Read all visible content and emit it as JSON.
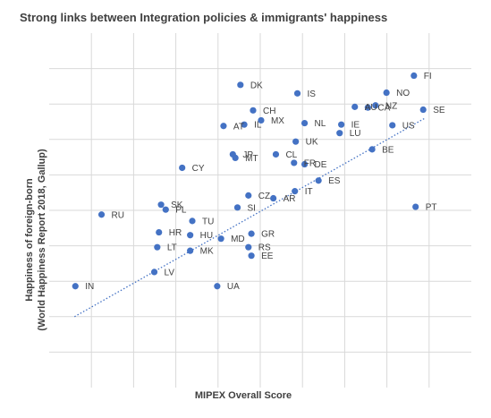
{
  "chart_data": {
    "type": "scatter",
    "title": "Strong links between Integration policies & immigrants' happiness",
    "xlabel": "MIPEX Overall Score",
    "ylabel_line1": "Happiness of foreign-born",
    "ylabel_line2": "(World Happiness Report 2018, Gallup)",
    "xlim": [
      0,
      100
    ],
    "ylim": [
      3,
      8
    ],
    "x_gridlines": [
      10,
      20,
      30,
      40,
      50,
      60,
      70,
      80,
      90
    ],
    "y_gridlines": [
      3.5,
      4,
      4.5,
      5,
      5.5,
      6,
      6.5,
      7,
      7.5
    ],
    "grid": true,
    "trendline": {
      "style": "dotted",
      "color": "#4472c4",
      "x": [
        6,
        89
      ],
      "y": [
        4,
        6.8
      ]
    },
    "point_color": "#4472c4",
    "points": [
      {
        "label": "FI",
        "x": 86.4,
        "y": 7.4
      },
      {
        "label": "DK",
        "x": 45.3,
        "y": 7.27
      },
      {
        "label": "IS",
        "x": 58.8,
        "y": 7.15
      },
      {
        "label": "NO",
        "x": 79.9,
        "y": 7.16
      },
      {
        "label": "NZ",
        "x": 77.3,
        "y": 6.98
      },
      {
        "label": "SE",
        "x": 88.6,
        "y": 6.92
      },
      {
        "label": "CA",
        "x": 75.5,
        "y": 6.95
      },
      {
        "label": "AU",
        "x": 72.4,
        "y": 6.96
      },
      {
        "label": "CH",
        "x": 48.3,
        "y": 6.91
      },
      {
        "label": "MX",
        "x": 50.2,
        "y": 6.77
      },
      {
        "label": "NL",
        "x": 60.5,
        "y": 6.73
      },
      {
        "label": "IE",
        "x": 69.2,
        "y": 6.71
      },
      {
        "label": "IL",
        "x": 46.2,
        "y": 6.71
      },
      {
        "label": "AT",
        "x": 41.3,
        "y": 6.69
      },
      {
        "label": "LU",
        "x": 68.8,
        "y": 6.59
      },
      {
        "label": "US",
        "x": 81.3,
        "y": 6.7
      },
      {
        "label": "UK",
        "x": 58.4,
        "y": 6.47
      },
      {
        "label": "BE",
        "x": 76.5,
        "y": 6.36
      },
      {
        "label": "JP",
        "x": 43.5,
        "y": 6.29
      },
      {
        "label": "CL",
        "x": 53.7,
        "y": 6.29
      },
      {
        "label": "MT",
        "x": 44.1,
        "y": 6.24
      },
      {
        "label": "FR",
        "x": 58.0,
        "y": 6.17
      },
      {
        "label": "DE",
        "x": 60.5,
        "y": 6.15
      },
      {
        "label": "CY",
        "x": 31.5,
        "y": 6.1
      },
      {
        "label": "ES",
        "x": 63.8,
        "y": 5.92
      },
      {
        "label": "IT",
        "x": 58.2,
        "y": 5.77
      },
      {
        "label": "CZ",
        "x": 47.2,
        "y": 5.71
      },
      {
        "label": "AR",
        "x": 53.1,
        "y": 5.67
      },
      {
        "label": "SK",
        "x": 26.5,
        "y": 5.58
      },
      {
        "label": "SI",
        "x": 44.6,
        "y": 5.54
      },
      {
        "label": "PT",
        "x": 86.8,
        "y": 5.55
      },
      {
        "label": "PL",
        "x": 27.6,
        "y": 5.51
      },
      {
        "label": "RU",
        "x": 12.4,
        "y": 5.44
      },
      {
        "label": "TU",
        "x": 33.9,
        "y": 5.35
      },
      {
        "label": "HR",
        "x": 26.0,
        "y": 5.19
      },
      {
        "label": "HU",
        "x": 33.4,
        "y": 5.15
      },
      {
        "label": "GR",
        "x": 47.9,
        "y": 5.17
      },
      {
        "label": "MD",
        "x": 40.7,
        "y": 5.1
      },
      {
        "label": "LT",
        "x": 25.6,
        "y": 4.98
      },
      {
        "label": "RS",
        "x": 47.2,
        "y": 4.98
      },
      {
        "label": "MK",
        "x": 33.4,
        "y": 4.93
      },
      {
        "label": "EE",
        "x": 47.9,
        "y": 4.86
      },
      {
        "label": "LV",
        "x": 24.9,
        "y": 4.63
      },
      {
        "label": "IN",
        "x": 6.2,
        "y": 4.43
      },
      {
        "label": "UA",
        "x": 39.8,
        "y": 4.43
      }
    ]
  }
}
